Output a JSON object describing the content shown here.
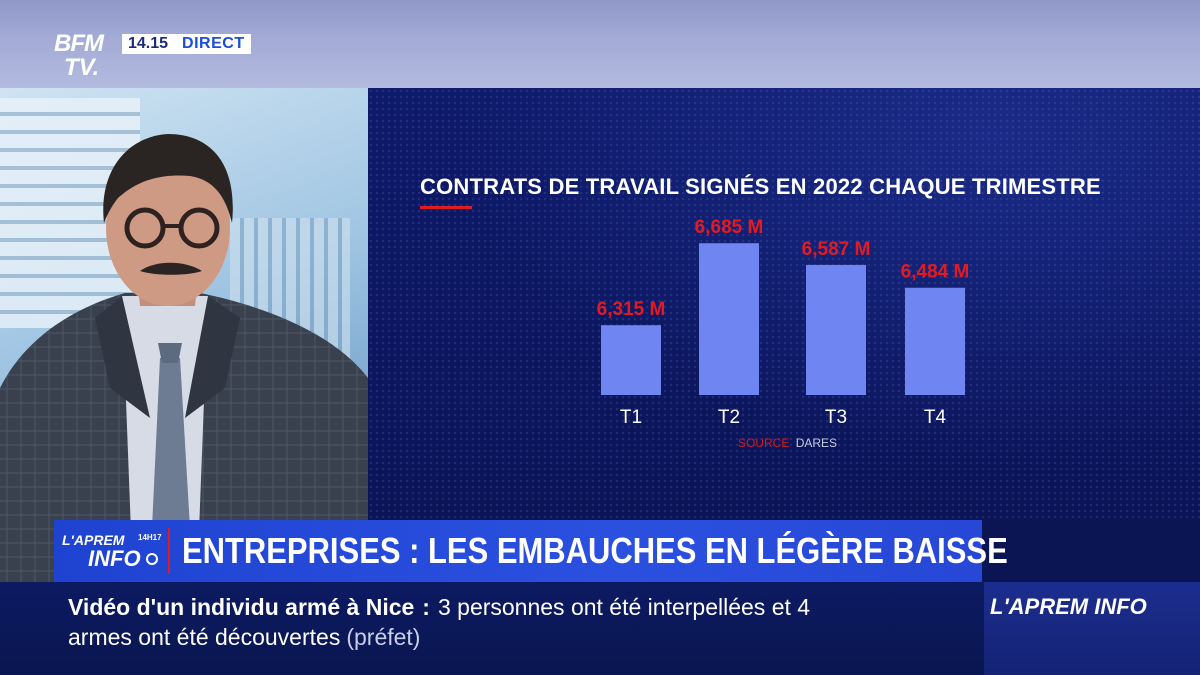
{
  "channel": {
    "logo_line1": "BFM",
    "logo_line2": "TV.",
    "time": "14.15",
    "live_label": "DIRECT"
  },
  "chart_data": {
    "type": "bar",
    "title": "CONTRATS DE TRAVAIL SIGNÉS EN 2022 CHAQUE TRIMESTRE",
    "categories": [
      "T1",
      "T2",
      "T3",
      "T4"
    ],
    "values": [
      6.315,
      6.685,
      6.587,
      6.484
    ],
    "data_labels": [
      "6,315 M",
      "6,685 M",
      "6,587 M",
      "6,484 M"
    ],
    "unit": "M",
    "source_label": "SOURCE",
    "source_value": "DARES",
    "colors": {
      "bar": "#6f86f2",
      "label": "#e21b22",
      "axis_text": "#ffffff"
    }
  },
  "headline": {
    "show_name": "L'APREM",
    "show_time": "14H17",
    "show_info": "INFO",
    "text": "ENTREPRISES : LES EMBAUCHES EN LÉGÈRE BAISSE"
  },
  "ticker": {
    "topic": "Vidéo d'un individu armé à Nice",
    "separator": ":",
    "line1_rest": "3 personnes ont été interpellées et 4",
    "line2": "armes ont été découvertes",
    "attribution": "(préfet)",
    "show_tag": "L'APREM INFO"
  }
}
